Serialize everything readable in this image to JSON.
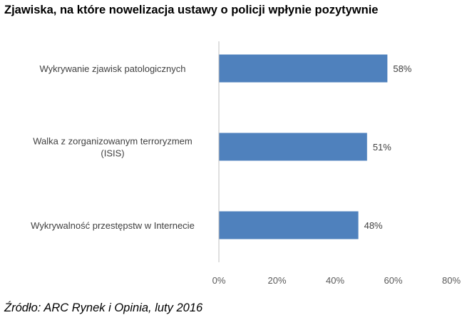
{
  "title": "Zjawiska, na które nowelizacja ustawy o policji wpłynie pozytywnie",
  "source": "Źródło: ARC Rynek i Opinia, luty 2016",
  "chart_data": {
    "type": "bar",
    "orientation": "horizontal",
    "title": "Zjawiska, na które nowelizacja ustawy o policji wpłynie pozytywnie",
    "categories": [
      "Wykrywanie zjawisk patologicznych",
      "Walka z zorganizowanym terroryzmem (ISIS)",
      "Wykrywalność przestępstw w Internecie"
    ],
    "category_lines": [
      [
        "Wykrywanie zjawisk patologicznych"
      ],
      [
        "Walka z zorganizowanym terroryzmem",
        "(ISIS)"
      ],
      [
        "Wykrywalność przestępstw w Internecie"
      ]
    ],
    "values": [
      58,
      51,
      48
    ],
    "value_labels": [
      "58%",
      "51%",
      "48%"
    ],
    "xlim": [
      0,
      80
    ],
    "ticks": [
      0,
      20,
      40,
      60,
      80
    ],
    "tick_labels": [
      "0%",
      "20%",
      "40%",
      "60%",
      "80%"
    ],
    "xlabel": "",
    "ylabel": "",
    "grid": false,
    "bar_color": "#4f81bd",
    "axis_color": "#bfbfbf"
  }
}
